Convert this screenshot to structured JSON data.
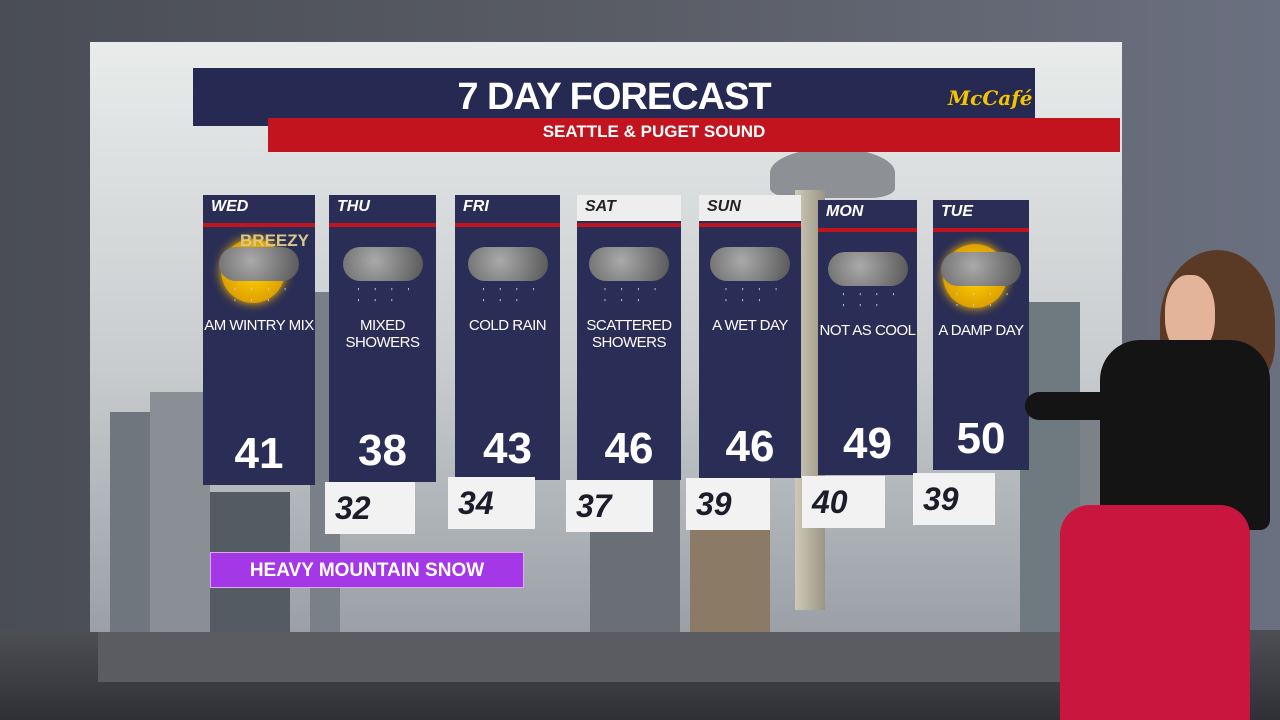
{
  "header": {
    "title": "7 DAY FORECAST",
    "subtitle": "SEATTLE & PUGET SOUND",
    "sponsor": "McCafé"
  },
  "days": [
    {
      "name": "WED",
      "condition": "AM WINTRY MIX",
      "high": "41",
      "low": null,
      "icon": "sun-cloud-mix-icon",
      "badge": "BREEZY"
    },
    {
      "name": "THU",
      "condition": "MIXED SHOWERS",
      "high": "38",
      "low": "32",
      "icon": "cloud-rain-snow-icon"
    },
    {
      "name": "FRI",
      "condition": "COLD RAIN",
      "high": "43",
      "low": "34",
      "icon": "cloud-rain-icon"
    },
    {
      "name": "SAT",
      "condition": "SCATTERED SHOWERS",
      "high": "46",
      "low": "37",
      "icon": "cloud-rain-icon"
    },
    {
      "name": "SUN",
      "condition": "A WET DAY",
      "high": "46",
      "low": "39",
      "icon": "cloud-rain-icon"
    },
    {
      "name": "MON",
      "condition": "NOT AS COOL",
      "high": "49",
      "low": "40",
      "icon": "cloud-rain-icon"
    },
    {
      "name": "TUE",
      "condition": "A DAMP DAY",
      "high": "50",
      "low": "39",
      "icon": "sun-cloud-rain-icon"
    }
  ],
  "alert": "HEAVY MOUNTAIN SNOW",
  "colors": {
    "navy": "#262a52",
    "red": "#c2141e",
    "alert": "#a538e6",
    "sponsor": "#f5c400"
  }
}
